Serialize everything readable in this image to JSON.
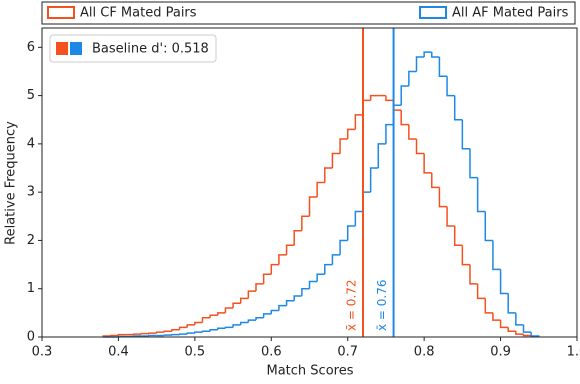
{
  "chart_data": {
    "type": "step-histogram",
    "x_label": "Match Scores",
    "y_label": "Relative Frequency",
    "xlim": [
      0.3,
      1.0
    ],
    "ylim": [
      0,
      6.4
    ],
    "xticks": [
      0.3,
      0.4,
      0.5,
      0.6,
      0.7,
      0.8,
      0.9,
      {
        "value": 1.0,
        "label": "1.0"
      }
    ],
    "yticks": [
      0,
      1,
      2,
      3,
      4,
      5,
      6
    ],
    "bins": [
      0.38,
      0.39,
      0.4,
      0.41,
      0.42,
      0.43,
      0.44,
      0.45,
      0.46,
      0.47,
      0.48,
      0.49,
      0.5,
      0.51,
      0.52,
      0.53,
      0.54,
      0.55,
      0.56,
      0.57,
      0.58,
      0.59,
      0.6,
      0.61,
      0.62,
      0.63,
      0.64,
      0.65,
      0.66,
      0.67,
      0.68,
      0.69,
      0.7,
      0.71,
      0.72,
      0.73,
      0.74,
      0.75,
      0.76,
      0.77,
      0.78,
      0.79,
      0.8,
      0.81,
      0.82,
      0.83,
      0.84,
      0.85,
      0.86,
      0.87,
      0.88,
      0.89,
      0.9,
      0.91,
      0.92,
      0.93,
      0.94,
      0.95
    ],
    "series": [
      {
        "name": "All CF Mated Pairs",
        "color": "#f4511e",
        "values": [
          0.02,
          0.03,
          0.05,
          0.05,
          0.06,
          0.07,
          0.08,
          0.1,
          0.12,
          0.15,
          0.2,
          0.25,
          0.3,
          0.4,
          0.45,
          0.5,
          0.6,
          0.7,
          0.8,
          0.95,
          1.1,
          1.3,
          1.5,
          1.7,
          1.9,
          2.2,
          2.5,
          2.9,
          3.2,
          3.5,
          3.8,
          4.1,
          4.3,
          4.6,
          4.9,
          5.0,
          5.0,
          4.9,
          4.7,
          4.4,
          4.1,
          3.8,
          3.4,
          3.1,
          2.7,
          2.3,
          1.9,
          1.5,
          1.1,
          0.8,
          0.5,
          0.35,
          0.2,
          0.12,
          0.06,
          0.03,
          0.01
        ]
      },
      {
        "name": "All AF Mated Pairs",
        "color": "#1e88e5",
        "values": [
          0,
          0,
          0.01,
          0.01,
          0.02,
          0.02,
          0.03,
          0.03,
          0.04,
          0.05,
          0.06,
          0.08,
          0.1,
          0.12,
          0.15,
          0.18,
          0.2,
          0.25,
          0.3,
          0.35,
          0.4,
          0.48,
          0.55,
          0.65,
          0.75,
          0.85,
          1.0,
          1.15,
          1.3,
          1.5,
          1.7,
          2.0,
          2.3,
          2.6,
          3.0,
          3.5,
          4.0,
          4.4,
          4.8,
          5.2,
          5.5,
          5.8,
          5.9,
          5.8,
          5.4,
          5.0,
          4.5,
          3.9,
          3.3,
          2.6,
          2.0,
          1.4,
          0.9,
          0.5,
          0.25,
          0.1,
          0.02
        ]
      }
    ],
    "mean_lines": [
      {
        "value": 0.72,
        "label": "x̄ = 0.72",
        "color": "#f4511e"
      },
      {
        "value": 0.76,
        "label": "x̄ = 0.76",
        "color": "#1e88e5"
      }
    ],
    "inner_legend": {
      "label": "Baseline d': 0.518"
    }
  }
}
